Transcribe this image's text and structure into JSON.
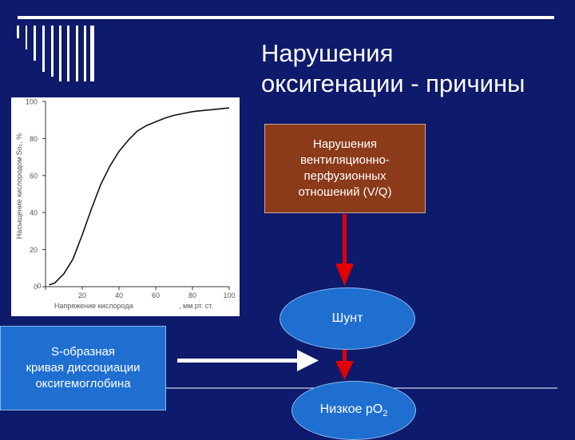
{
  "slide": {
    "title_lines": [
      "Нарушения",
      "оксигенации - причины"
    ]
  },
  "colors": {
    "background": "#0e1a6b",
    "box_brown": "#8b3a1a",
    "box_blue": "#1f6fd1",
    "arrow_red": "#e00000",
    "arrow_white": "#ffffff"
  },
  "boxes": {
    "vq_lines": [
      "Нарушения",
      "вентиляционно-",
      "перфузионных",
      "отношений (V/Q)"
    ],
    "shunt": "Шунт",
    "low_po2_prefix": "Низкое рО",
    "low_po2_sub": "2",
    "s_curve_lines": [
      "S-образная",
      "кривая диссоциации",
      "оксигемоглобина"
    ]
  },
  "chart_data": {
    "type": "line",
    "ylabel": "Насыщение кислородом So₂, %",
    "xlabel": "Напряжение кислорода",
    "xlabel_unit": ", мм рт. ст.",
    "x_ticks": [
      "0",
      "20",
      "40",
      "60",
      "80",
      "100"
    ],
    "y_ticks": [
      "0",
      "20",
      "40",
      "60",
      "80",
      "100"
    ],
    "xlim": [
      0,
      100
    ],
    "ylim": [
      0,
      100
    ],
    "grid": false,
    "series": [
      {
        "x": [
          2,
          5,
          10,
          15,
          20,
          25,
          30,
          35,
          40,
          45,
          50,
          55,
          60,
          65,
          70,
          75,
          80,
          85,
          90,
          95,
          100
        ],
        "y": [
          1,
          2,
          7,
          15,
          28,
          42,
          55,
          65,
          73,
          79,
          84,
          87,
          89,
          91,
          92.5,
          93.5,
          94.5,
          95,
          95.5,
          96,
          96.5
        ]
      }
    ]
  }
}
